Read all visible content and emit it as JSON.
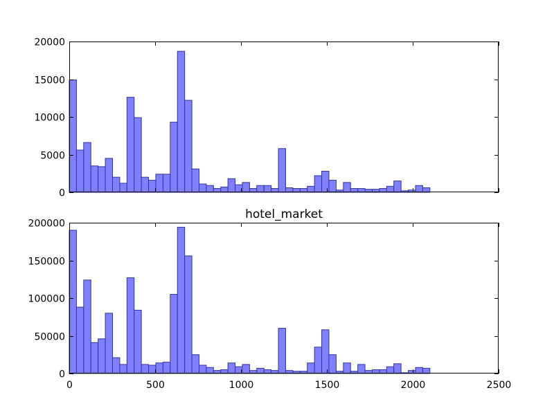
{
  "chart_data": [
    {
      "type": "bar",
      "title": "",
      "xlabel": "",
      "ylabel": "",
      "bin_width": 42,
      "bin_starts": [
        0,
        42,
        84,
        126,
        168,
        210,
        252,
        294,
        336,
        378,
        420,
        462,
        504,
        546,
        588,
        630,
        672,
        714,
        756,
        798,
        840,
        882,
        924,
        966,
        1008,
        1050,
        1092,
        1134,
        1176,
        1218,
        1260,
        1302,
        1344,
        1386,
        1428,
        1470,
        1512,
        1554,
        1596,
        1638,
        1680,
        1722,
        1764,
        1806,
        1848,
        1890,
        1932,
        1974,
        2016,
        2058,
        2100
      ],
      "values": [
        14900,
        5600,
        6600,
        3500,
        3400,
        4500,
        2000,
        1200,
        12600,
        9900,
        2000,
        1600,
        2400,
        2400,
        9300,
        18700,
        12200,
        3100,
        1100,
        900,
        500,
        700,
        1800,
        1000,
        1300,
        500,
        900,
        900,
        500,
        5800,
        600,
        500,
        500,
        800,
        2200,
        2800,
        1600,
        300,
        1300,
        500,
        500,
        400,
        400,
        500,
        800,
        1500,
        200,
        300,
        900,
        600,
        0
      ],
      "xlim": [
        0,
        2500
      ],
      "ylim": [
        0,
        20000
      ],
      "xticks": [
        0,
        500,
        1000,
        1500,
        2000,
        2500
      ],
      "yticks": [
        0,
        5000,
        10000,
        15000,
        20000
      ],
      "xtick_labels": [],
      "ytick_labels": [
        "0",
        "5000",
        "10000",
        "15000",
        "20000"
      ],
      "grid": false,
      "bar_color": "#8080ff",
      "edge_color": "#333399"
    },
    {
      "type": "bar",
      "title": "hotel_market",
      "xlabel": "",
      "ylabel": "",
      "bin_width": 42,
      "bin_starts": [
        0,
        42,
        84,
        126,
        168,
        210,
        252,
        294,
        336,
        378,
        420,
        462,
        504,
        546,
        588,
        630,
        672,
        714,
        756,
        798,
        840,
        882,
        924,
        966,
        1008,
        1050,
        1092,
        1134,
        1176,
        1218,
        1260,
        1302,
        1344,
        1386,
        1428,
        1470,
        1512,
        1554,
        1596,
        1638,
        1680,
        1722,
        1764,
        1806,
        1848,
        1890,
        1932,
        1974,
        2016,
        2058,
        2100
      ],
      "values": [
        190000,
        88000,
        124000,
        41000,
        46000,
        80000,
        21000,
        12000,
        127000,
        84000,
        12000,
        11000,
        14000,
        15000,
        105000,
        194000,
        156000,
        25000,
        11000,
        8000,
        4000,
        5000,
        14000,
        9000,
        12000,
        4000,
        7000,
        5000,
        4000,
        60000,
        4000,
        3000,
        3000,
        14000,
        35000,
        58000,
        25000,
        3000,
        14000,
        3000,
        12000,
        4000,
        5000,
        5000,
        9000,
        13000,
        1000,
        4000,
        8000,
        7000,
        0
      ],
      "xlim": [
        0,
        2500
      ],
      "ylim": [
        0,
        200000
      ],
      "xticks": [
        0,
        500,
        1000,
        1500,
        2000,
        2500
      ],
      "yticks": [
        0,
        50000,
        100000,
        150000,
        200000
      ],
      "xtick_labels": [
        "0",
        "500",
        "1000",
        "1500",
        "2000",
        "2500"
      ],
      "ytick_labels": [
        "0",
        "50000",
        "100000",
        "150000",
        "200000"
      ],
      "grid": false,
      "bar_color": "#8080ff",
      "edge_color": "#333399"
    }
  ]
}
